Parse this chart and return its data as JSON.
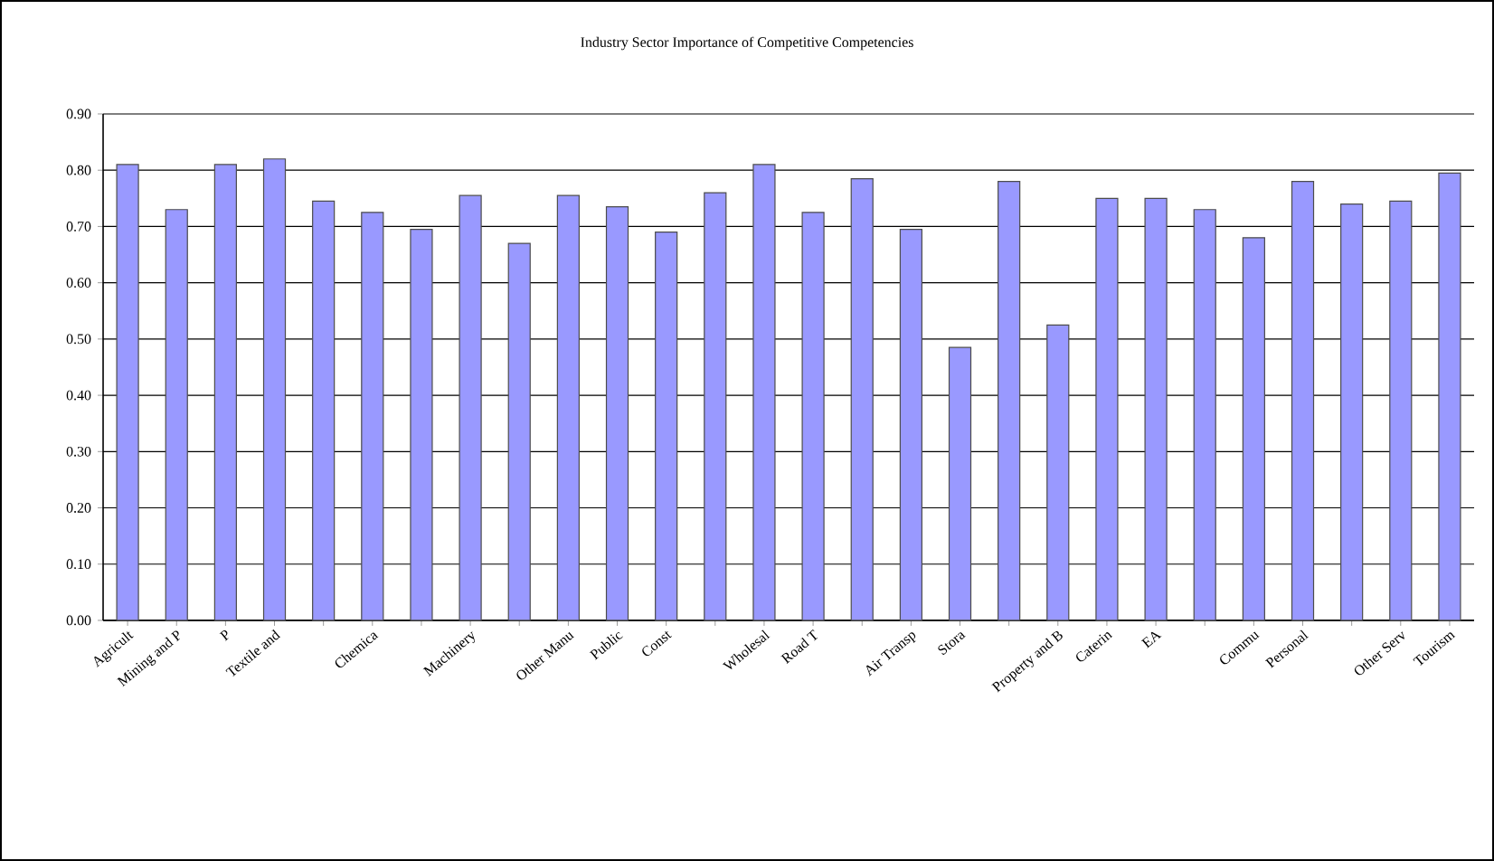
{
  "chart_data": {
    "type": "bar",
    "title": "Industry Sector Importance of Competitive Competencies",
    "categories": [
      "Agricult",
      "Mining and P",
      "P",
      "Textile and",
      null,
      "Chemica",
      null,
      "Machinery",
      null,
      "Other Manu",
      "Public",
      "Const",
      null,
      "Wholesal",
      "Road T",
      null,
      "Air Transp",
      "Stora",
      null,
      "Property and B",
      "Caterin",
      "EA",
      null,
      "Commu",
      "Personal",
      null,
      "Other Serv",
      "Tourism"
    ],
    "values": [
      0.81,
      0.73,
      0.81,
      0.82,
      0.745,
      0.725,
      0.695,
      0.755,
      0.67,
      0.755,
      0.735,
      0.69,
      0.76,
      0.81,
      0.725,
      0.785,
      0.695,
      0.485,
      0.78,
      0.525,
      0.75,
      0.75,
      0.73,
      0.68,
      0.78,
      0.74,
      0.745,
      0.795
    ],
    "color": "#9999ff",
    "ylim": [
      0,
      0.9
    ],
    "yticks": [
      {
        "value": 0,
        "label": "0.00"
      },
      {
        "value": 0.1,
        "label": "0.10"
      },
      {
        "value": 0.2,
        "label": "0.20"
      },
      {
        "value": 0.3,
        "label": "0.30"
      },
      {
        "value": 0.4,
        "label": "0.40"
      },
      {
        "value": 0.5,
        "label": "0.50"
      },
      {
        "value": 0.6,
        "label": "0.60"
      },
      {
        "value": 0.7,
        "label": "0.70"
      },
      {
        "value": 0.8,
        "label": "0.80"
      },
      {
        "value": 0.9,
        "label": "0.90"
      }
    ],
    "grid": "y"
  }
}
